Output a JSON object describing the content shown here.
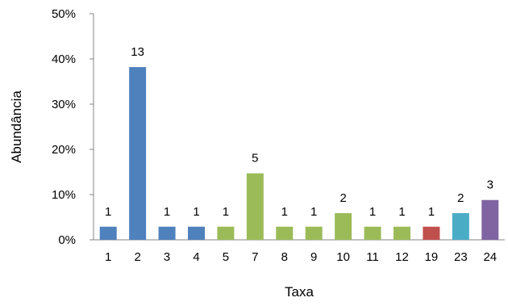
{
  "chart_data": {
    "type": "bar",
    "title": "",
    "xlabel": "Taxa",
    "ylabel": "Abundância",
    "ylim": [
      0,
      50
    ],
    "yticks": [
      "0%",
      "10%",
      "20%",
      "30%",
      "40%",
      "50%"
    ],
    "grid": false,
    "legend": "none",
    "categories": [
      "1",
      "2",
      "3",
      "4",
      "5",
      "7",
      "8",
      "9",
      "10",
      "11",
      "12",
      "19",
      "23",
      "24"
    ],
    "values": [
      2.9,
      38.2,
      2.9,
      2.9,
      2.9,
      14.7,
      2.9,
      2.9,
      5.9,
      2.9,
      2.9,
      2.9,
      5.9,
      8.8
    ],
    "data_labels": [
      "1",
      "13",
      "1",
      "1",
      "1",
      "5",
      "1",
      "1",
      "2",
      "1",
      "1",
      "1",
      "2",
      "3"
    ],
    "colors": [
      "#4f81bd",
      "#4f81bd",
      "#4f81bd",
      "#4f81bd",
      "#9bbb59",
      "#9bbb59",
      "#9bbb59",
      "#9bbb59",
      "#9bbb59",
      "#9bbb59",
      "#9bbb59",
      "#c0504d",
      "#4bacc6",
      "#8064a2"
    ]
  }
}
